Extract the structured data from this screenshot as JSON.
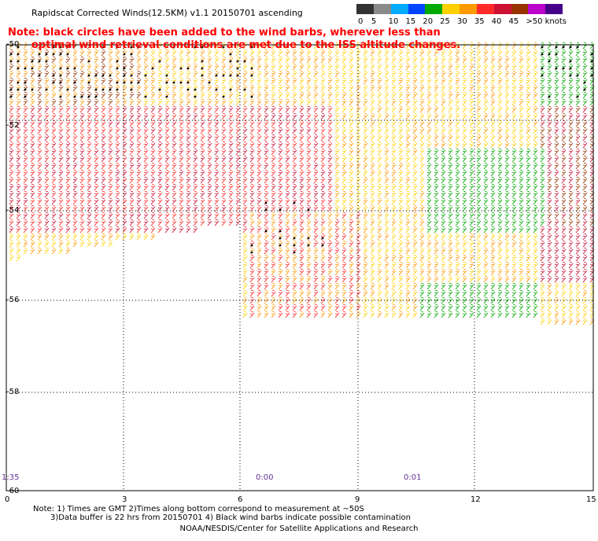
{
  "header": {
    "title": "Rapidscat Corrected Winds(12.5KM) v1.1 20150701 ascending"
  },
  "legend": {
    "labels": [
      "0",
      "5",
      "10",
      "15",
      "20",
      "25",
      "30",
      "35",
      "40",
      "45",
      ">50 knots"
    ],
    "colors": [
      "#333333",
      "#8a8a8a",
      "#00aaff",
      "#0044ff",
      "#00aa00",
      "#ffd000",
      "#ff9900",
      "#ff2a2a",
      "#cc1133",
      "#993300",
      "#bb00cc",
      "#440088"
    ]
  },
  "note": {
    "line1": "Note: black circles have been added to the wind barbs, wherever less than",
    "line2": "optimal wind retrieval conditions are met due to the ISS altitude changes."
  },
  "axes": {
    "y_labels": [
      "-50",
      "-52",
      "-54",
      "-56",
      "-58",
      "-60"
    ],
    "x_labels": [
      "0",
      "3",
      "6",
      "9",
      "12",
      "15"
    ]
  },
  "time_labels": [
    "1:35",
    "0:00",
    "0:01"
  ],
  "footnote": {
    "line1": "Note: 1) Times are GMT 2)Times along bottom correspond to measurement at ~50S",
    "line2": "3)Data buffer is 22 hrs from 20150701 4) Black wind barbs indicate possible contamination"
  },
  "credit": "NOAA/NESDIS/Center for Satellite Applications and Research"
}
